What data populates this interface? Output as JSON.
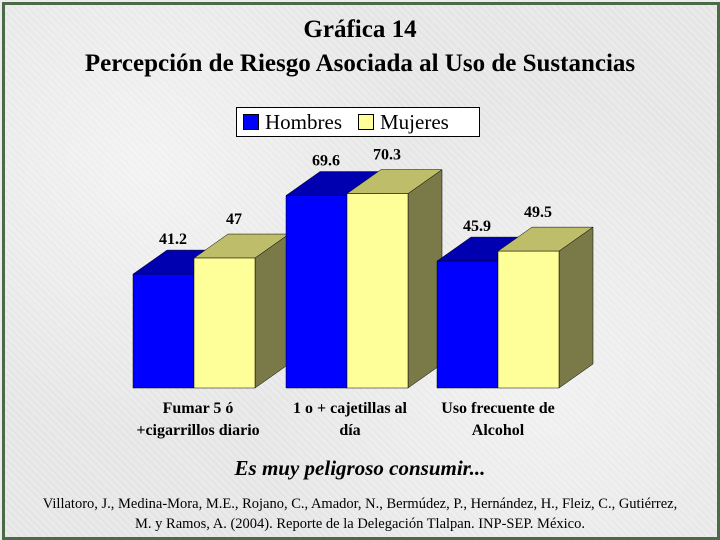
{
  "chart_data": {
    "type": "bar",
    "title": "Gráfica 14",
    "subtitle": "Percepción de Riesgo Asociada al Uso de Sustancias",
    "categories": [
      [
        "Fumar 5 ó",
        "+cigarrillos diario"
      ],
      [
        "1 o + cajetillas al",
        "día"
      ],
      [
        "Uso frecuente de",
        "Alcohol"
      ]
    ],
    "series": [
      {
        "name": "Hombres",
        "color": "#0000ff",
        "values": [
          41.2,
          69.6,
          45.9
        ],
        "labels": [
          "41.2",
          "69.6",
          "45.9"
        ]
      },
      {
        "name": "Mujeres",
        "color": "#ffff99",
        "values": [
          47,
          70.3,
          49.5
        ],
        "labels": [
          "47",
          "70.3",
          "49.5"
        ]
      }
    ],
    "ylim": [
      0,
      80
    ],
    "legend": "top-center",
    "grid": false,
    "three_d": true
  },
  "caption": "Es muy peligroso consumir...",
  "source": "Villatoro, J., Medina-Mora, M.E., Rojano, C., Amador, N., Bermúdez, P., Hernández, H., Fleiz, C., Gutiérrez, M. y Ramos, A. (2004). Reporte de la Delegación Tlalpan. INP-SEP. México."
}
